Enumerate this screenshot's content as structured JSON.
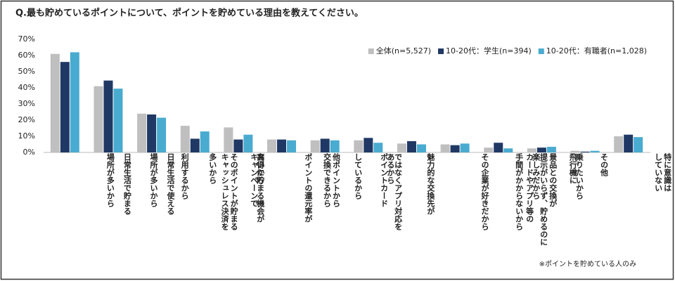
{
  "chart_data": {
    "type": "bar",
    "title": "Q.最も貯めているポイントについて、ポイントを貯めている理由を教えてください。",
    "note": "※ポイントを貯めている人のみ",
    "categories": [
      "日常生活で貯まる\n場所が多いから",
      "日常生活で使える\n場所が多いから",
      "そのポイントが貯まる\nキャッシュレス決済を\n利用するから",
      "キャンペーンで\nお得に貯まる機会が\n多いから",
      "ポイントの還元率が\n高いから",
      "他ポイントから\n交換できるから",
      "ポイントカード\nではなくアプリ対応を\nしているから",
      "魅力的な交換先が\nあるから",
      "その企業が好きだから",
      "カードやアプリ等の\n提示がいらず、貯めるのに\n手間がかからないから",
      "景品との交換が\n楽しみだから",
      "飛行機に\n乗りたいから",
      "その他",
      "特に意識は\nしていない"
    ],
    "series": [
      {
        "name": "全体(n=5,527)",
        "color": "#bfbfbf",
        "values": [
          61,
          41,
          24,
          16.5,
          15.5,
          8,
          7.5,
          7.5,
          5.5,
          5,
          3,
          2.5,
          1,
          10
        ]
      },
      {
        "name": "10-20代：学生(n=394)",
        "color": "#203864",
        "values": [
          56,
          44.5,
          23.5,
          8.5,
          8,
          8,
          8.5,
          9,
          7,
          4.5,
          6,
          3,
          0.5,
          11
        ]
      },
      {
        "name": "10-20代：有職者(n=1,028)",
        "color": "#4aabd0",
        "values": [
          62,
          39.5,
          21.5,
          13,
          11,
          7.5,
          7.5,
          6,
          5,
          5.5,
          2.5,
          3.5,
          1,
          9.5
        ]
      }
    ],
    "ylim": [
      0,
      70
    ],
    "yticks": [
      {
        "value": 0,
        "label": "0%"
      },
      {
        "value": 10,
        "label": "10%"
      },
      {
        "value": 20,
        "label": "20%"
      },
      {
        "value": 30,
        "label": "30%"
      },
      {
        "value": 40,
        "label": "40%"
      },
      {
        "value": 50,
        "label": "50%"
      },
      {
        "value": 60,
        "label": "60%"
      },
      {
        "value": 70,
        "label": "70%"
      }
    ],
    "legend": "top-right"
  }
}
